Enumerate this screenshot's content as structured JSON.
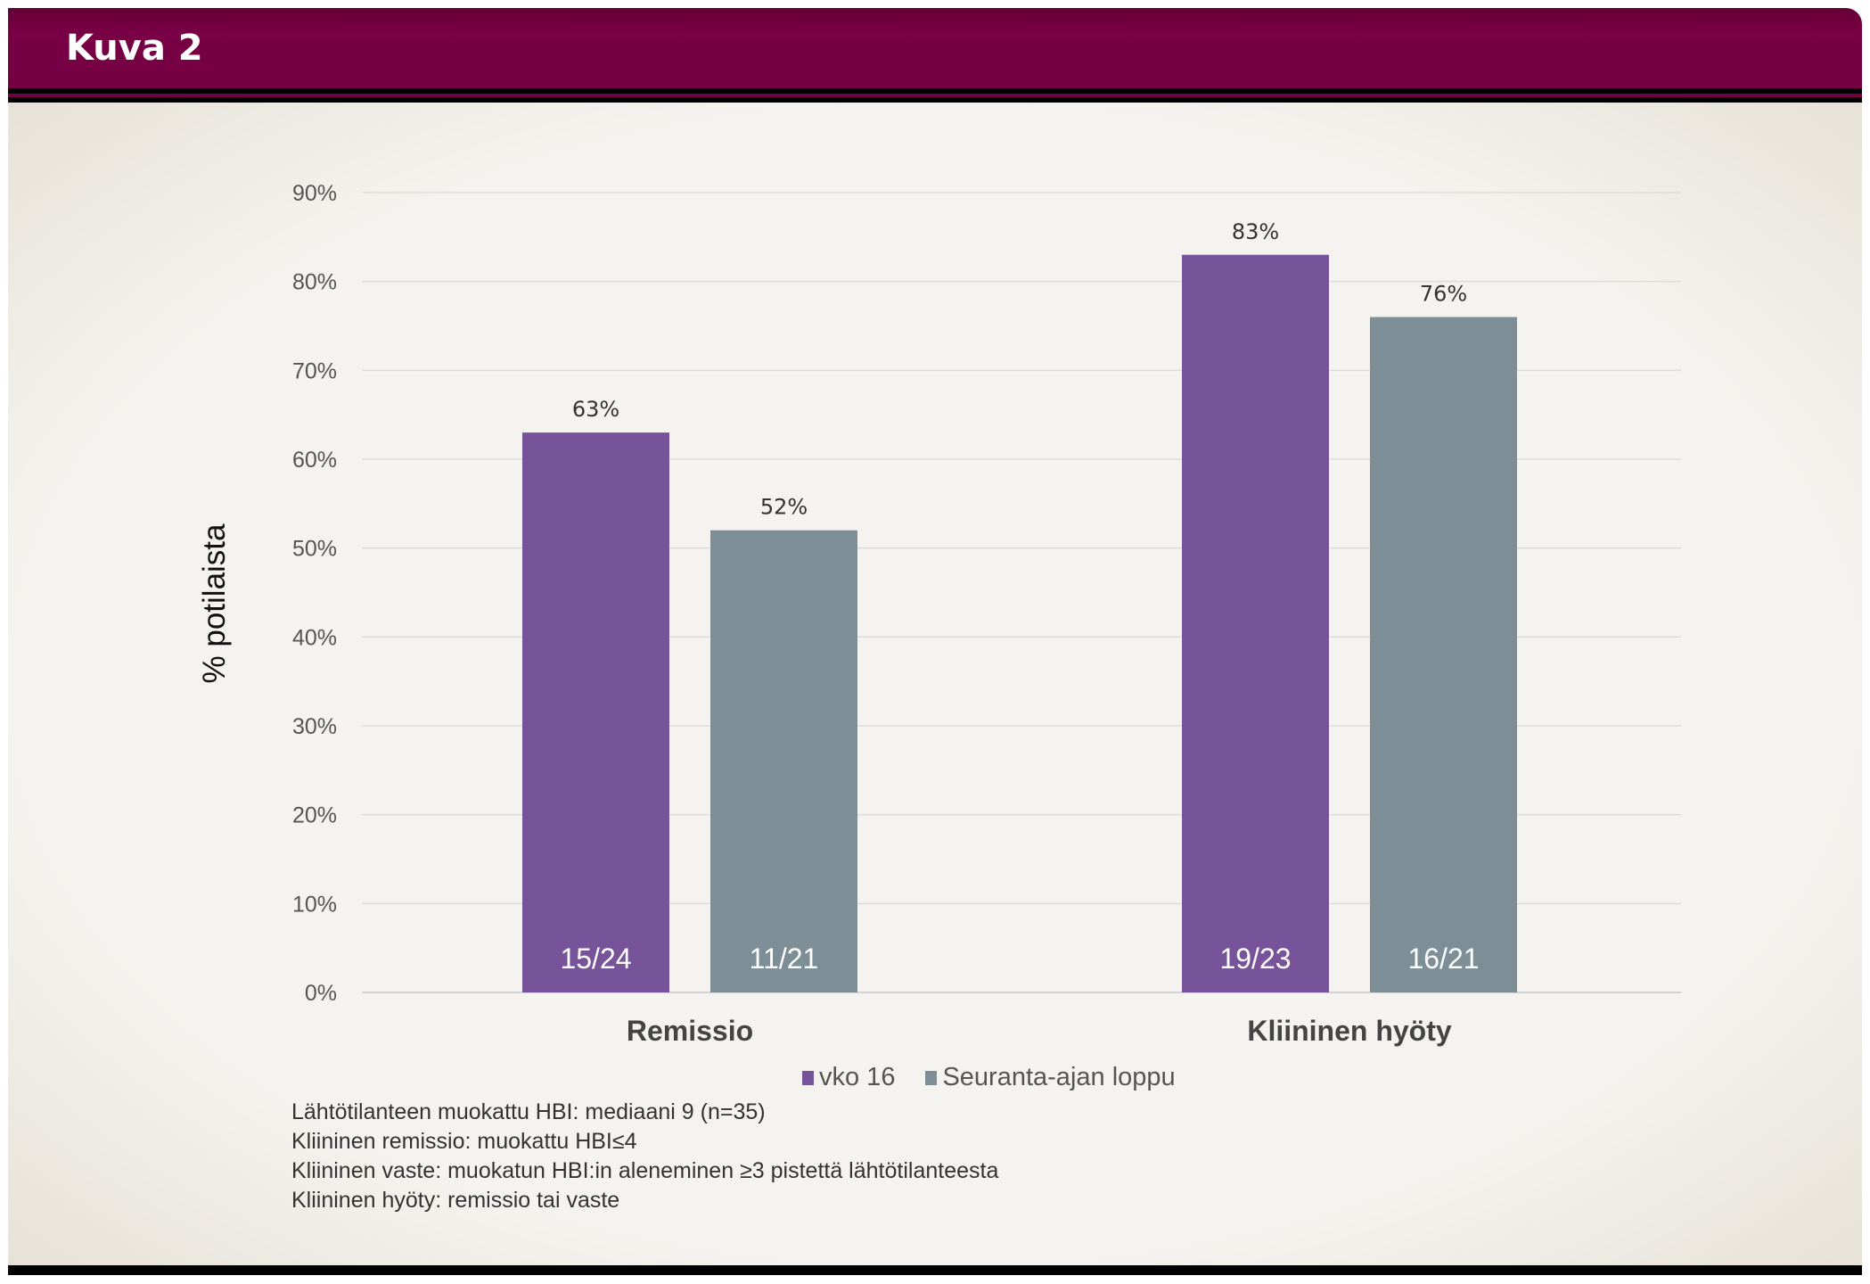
{
  "header": {
    "title": "Kuva 2"
  },
  "chart_data": {
    "type": "bar",
    "categories": [
      "Remissio",
      "Kliininen hyöty"
    ],
    "series": [
      {
        "name": "vko 16",
        "color": "#775499",
        "values": [
          63,
          83
        ],
        "value_labels": [
          "63%",
          "83%"
        ],
        "counts": [
          "15/24",
          "19/23"
        ]
      },
      {
        "name": "Seuranta-ajan loppu",
        "color": "#7d8e96",
        "values": [
          52,
          76
        ],
        "value_labels": [
          "52%",
          "76%"
        ],
        "counts": [
          "11/21",
          "16/21"
        ]
      }
    ],
    "ylabel": "% potilaista",
    "ylim": [
      0,
      90
    ],
    "yticks": [
      "0%",
      "10%",
      "20%",
      "30%",
      "40%",
      "50%",
      "60%",
      "70%",
      "80%",
      "90%"
    ],
    "grid": true,
    "legend": "bottom"
  },
  "notes": [
    "Lähtötilanteen muokattu HBI: mediaani 9 (n=35)",
    "Kliininen remissio: muokattu HBI≤4",
    "Kliininen vaste: muokatun HBI:in aleneminen ≥3 pistettä lähtötilanteesta",
    "Kliininen hyöty: remissio tai vaste"
  ]
}
